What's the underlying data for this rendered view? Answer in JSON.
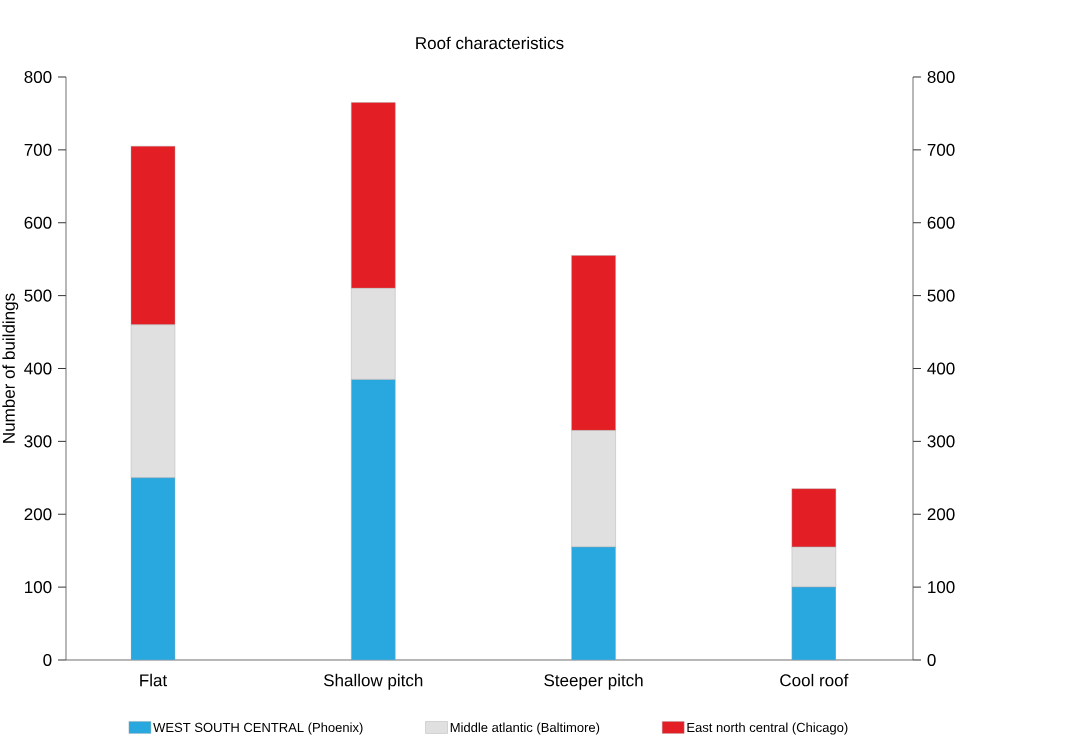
{
  "chart_data": {
    "type": "bar",
    "title": "Roof characteristics",
    "ylabel": "Number of buildings",
    "stacked": true,
    "categories": [
      "Flat",
      "Shallow pitch",
      "Steeper pitch",
      "Cool roof"
    ],
    "series": [
      {
        "name": "WEST SOUTH CENTRAL (Phoenix)",
        "color": "#29a8e0",
        "values": [
          250,
          385,
          155,
          100
        ]
      },
      {
        "name": "Middle atlantic (Baltimore)",
        "color": "#e0e0e0",
        "values": [
          210,
          125,
          160,
          55
        ]
      },
      {
        "name": "East north central (Chicago)",
        "color": "#e31e24",
        "values": [
          245,
          255,
          240,
          80
        ]
      }
    ],
    "ylim": [
      0,
      800
    ],
    "yticks": [
      0,
      100,
      200,
      300,
      400,
      500,
      600,
      700,
      800
    ],
    "y2lim": [
      0,
      800
    ],
    "y2ticks": [
      0,
      100,
      200,
      300,
      400,
      500,
      600,
      700,
      800
    ],
    "legend": "bottom",
    "grid": false
  }
}
